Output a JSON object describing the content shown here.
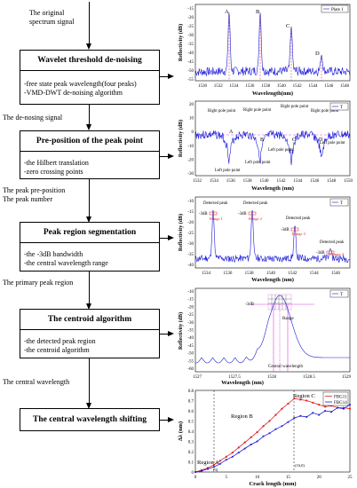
{
  "flow": {
    "labels": {
      "original": [
        "The original",
        "spectrum signal"
      ],
      "denoised": "The de-nosing signal",
      "prepos": [
        "The peak pre-position",
        "The peak number"
      ],
      "primary": "The primary peak region",
      "central": "The central wavelength"
    },
    "boxes": [
      {
        "title": "Wavelet threshold de-noising",
        "items": [
          "-free state peak wavelength(four peaks)",
          "-VMD-DWT de-noising algorithm"
        ]
      },
      {
        "title": "Pre-position of the peak point",
        "items": [
          "-the Hilbert translation",
          "-zero crossing points"
        ]
      },
      {
        "title": "Peak region segmentation",
        "items": [
          "-the -3dB bandwidth",
          "-the central wavelength range"
        ]
      },
      {
        "title": "The centroid algorithm",
        "items": [
          "-the detected peak region",
          "-the centroid algorithm"
        ]
      },
      {
        "title": "The central wavelength shifting",
        "items": []
      }
    ]
  },
  "plots": {
    "p1": {
      "ylabel": "Reflectivity (dB)",
      "xlabel": "Wavelength(nm)",
      "legend": "Plate 1",
      "xticks": [
        "1530",
        "1532",
        "1534",
        "1536",
        "1538",
        "1540",
        "1542",
        "1544",
        "1546",
        "1548"
      ],
      "yticks": [
        "-15",
        "-20",
        "-25",
        "-30",
        "-35",
        "-40",
        "-45",
        "-50",
        "-55"
      ],
      "peaks": [
        "A",
        "B",
        "C",
        "D"
      ]
    },
    "p2": {
      "ylabel": "Reflectivity (dB)",
      "xlabel": "Wavelength (nm)",
      "legend": "T",
      "xticks": [
        "1532",
        "1534",
        "1536",
        "1538",
        "1540",
        "1542",
        "1544",
        "1546",
        "1548",
        "1550"
      ],
      "yticks": [
        "20",
        "10",
        "0",
        "-10",
        "-20",
        "-30"
      ],
      "annotations": [
        "Right pole point",
        "Right pole point",
        "Right pole point",
        "Right pole point",
        "Left pole point",
        "Left pole point",
        "Left pole point",
        "Left pole point"
      ],
      "points": [
        "A",
        "B",
        "C",
        "D"
      ]
    },
    "p3": {
      "ylabel": "Reflectivity (dB)",
      "xlabel": "Wavelength (nm)",
      "legend": "T",
      "xticks": [
        "1534",
        "1536",
        "1538",
        "1540",
        "1542",
        "1544",
        "1546"
      ],
      "yticks": [
        "-10",
        "-15",
        "-20",
        "-25",
        "-30",
        "-35",
        "-40"
      ],
      "detected": [
        "Detected peak",
        "Detected peak",
        "Detected peak",
        "Detected peak"
      ],
      "ranges": [
        "Range 1",
        "Range 2",
        "Range 3",
        "Range 4"
      ],
      "db": "-3dB"
    },
    "p4": {
      "ylabel": "Reflectivity (dB)",
      "xlabel": "Wavelength (nm)",
      "legend": "T",
      "xticks": [
        "1527",
        "1527.5",
        "1528",
        "1528.5",
        "1529"
      ],
      "yticks": [
        "-10",
        "-15",
        "-20",
        "-25",
        "-30",
        "-35",
        "-40",
        "-45",
        "-50",
        "-55",
        "-60"
      ],
      "db": "-3dB",
      "range": "Range",
      "central": "Central wavelength"
    },
    "p5": {
      "ylabel": "Δλ (nm)",
      "xlabel": "Crack length (mm)",
      "xticks": [
        "0",
        "5",
        "10",
        "15",
        "20",
        "25"
      ],
      "yticks": [
        "0",
        "0.1",
        "0.2",
        "0.3",
        "0.4",
        "0.5",
        "0.6",
        "0.7",
        "0.8"
      ],
      "legend": [
        "FBG11",
        "FBG14"
      ],
      "regions": [
        "Region A",
        "Region B",
        "Region C"
      ],
      "marks": [
        "(3)",
        "(16,0)"
      ]
    }
  },
  "chart_data": [
    {
      "type": "line",
      "title": "",
      "xlabel": "Crack length (mm)",
      "ylabel": "Δλ (nm)",
      "xlim": [
        0,
        25
      ],
      "ylim": [
        0,
        0.8
      ],
      "series": [
        {
          "name": "FBG11",
          "x": [
            0,
            1,
            2,
            3,
            4,
            5,
            6,
            7,
            8,
            9,
            10,
            11,
            12,
            13,
            14,
            15,
            16,
            17,
            18,
            19,
            20,
            21,
            22,
            23,
            24,
            25
          ],
          "y": [
            0.0,
            0.02,
            0.04,
            0.07,
            0.11,
            0.15,
            0.19,
            0.24,
            0.29,
            0.34,
            0.39,
            0.45,
            0.5,
            0.56,
            0.62,
            0.67,
            0.72,
            0.71,
            0.7,
            0.68,
            0.66,
            0.64,
            0.65,
            0.63,
            0.63,
            0.62
          ]
        },
        {
          "name": "FBG14",
          "x": [
            0,
            1,
            2,
            3,
            4,
            5,
            6,
            7,
            8,
            9,
            10,
            11,
            12,
            13,
            14,
            15,
            16,
            17,
            18,
            19,
            20,
            21,
            22,
            23,
            24,
            25
          ],
          "y": [
            0.0,
            0.01,
            0.03,
            0.05,
            0.08,
            0.12,
            0.15,
            0.19,
            0.23,
            0.27,
            0.3,
            0.35,
            0.38,
            0.42,
            0.45,
            0.49,
            0.53,
            0.55,
            0.54,
            0.58,
            0.56,
            0.6,
            0.59,
            0.63,
            0.62,
            0.66
          ]
        }
      ]
    }
  ]
}
